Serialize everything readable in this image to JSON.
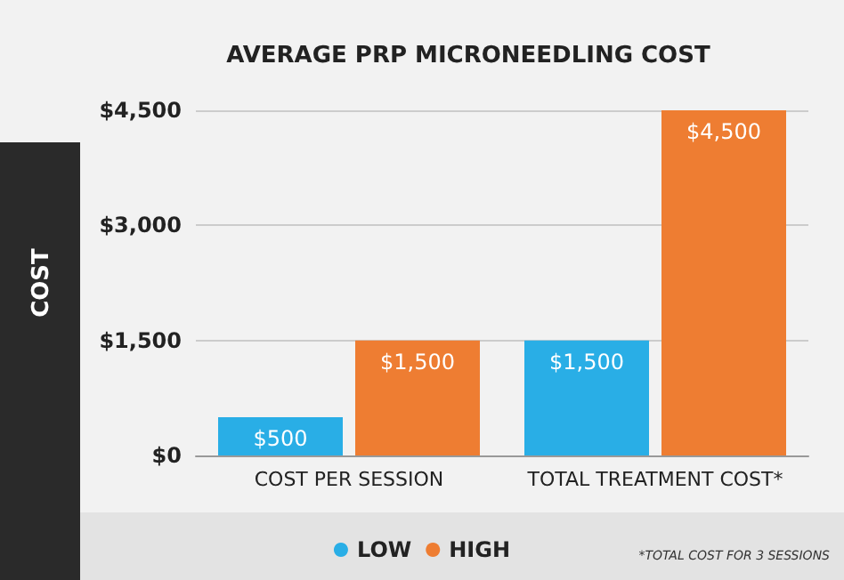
{
  "chart_data": {
    "type": "bar",
    "title": "AVERAGE PRP MICRONEEDLING COST",
    "ylabel": "COST",
    "categories": [
      "COST PER SESSION",
      "TOTAL TREATMENT COST*"
    ],
    "series": [
      {
        "name": "LOW",
        "color": "#29aee6",
        "values": [
          500,
          1500
        ],
        "value_labels": [
          "$500",
          "$1,500"
        ]
      },
      {
        "name": "HIGH",
        "color": "#ee7d32",
        "values": [
          1500,
          4500
        ],
        "value_labels": [
          "$1,500",
          "$4,500"
        ]
      }
    ],
    "ylim": [
      0,
      4500
    ],
    "yticks": [
      {
        "value": 0,
        "label": "$0"
      },
      {
        "value": 1500,
        "label": "$1,500"
      },
      {
        "value": 3000,
        "label": "$3,000"
      },
      {
        "value": 4500,
        "label": "$4,500"
      }
    ],
    "grid": "y",
    "legend": "bottom",
    "annotations": [
      "*TOTAL COST FOR 3 SESSIONS"
    ]
  }
}
